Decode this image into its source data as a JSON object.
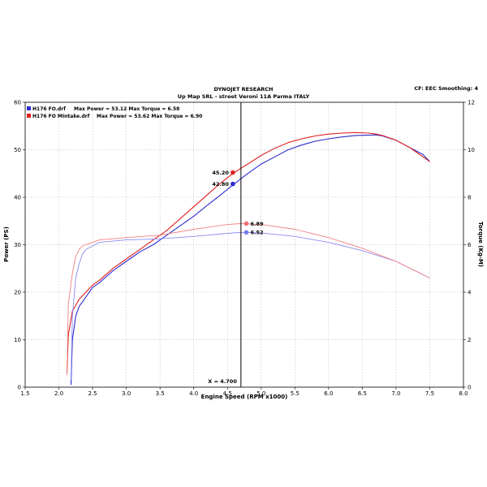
{
  "chart_data": {
    "type": "line",
    "header": {
      "title": "DYNOJET RESEARCH",
      "subtitle": "Up Map SRL - street Veroni 11A Parma ITALY",
      "info": "CF: EEC   Smoothing: 4"
    },
    "xlabel": "Engine Speed (RPM x1000)",
    "ylabel_left": "Power (PS)",
    "ylabel_right": "Torque (Kg-M)",
    "xlim": [
      1.5,
      8.0
    ],
    "ylim_left": [
      0,
      60
    ],
    "ylim_right": [
      0,
      12
    ],
    "x_ticks": [
      "1.5",
      "2.0",
      "2.5",
      "3.0",
      "3.5",
      "4.0",
      "4.5",
      "5.0",
      "5.5",
      "6.0",
      "6.5",
      "7.0",
      "7.5",
      "8.0"
    ],
    "y_ticks_left": [
      "0",
      "10",
      "20",
      "30",
      "40",
      "50",
      "60"
    ],
    "y_ticks_right": [
      "0",
      "2",
      "4",
      "6",
      "8",
      "10",
      "12"
    ],
    "grid": true,
    "legend": [
      {
        "run": "H176 FO.drf",
        "text": "Max Power = 53.12    Max Torque = 6.58",
        "color": "#2b2bd0"
      },
      {
        "run": "H176 FO MIntake.drf",
        "text": "Max Power = 53.62    Max Torque = 6.90",
        "color": "#e02020"
      }
    ],
    "cursor": {
      "x": 4.7,
      "label": "X = 4.700"
    },
    "markers": [
      {
        "label": "45.20",
        "x": 4.58,
        "y": 45.2,
        "axis": "left",
        "color": "#e02020"
      },
      {
        "label": "42.80",
        "x": 4.58,
        "y": 42.8,
        "axis": "left",
        "color": "#2b2bd0"
      },
      {
        "label": "6.89",
        "x": 4.78,
        "y": 6.89,
        "axis": "right",
        "color": "#f07070"
      },
      {
        "label": "6.52",
        "x": 4.78,
        "y": 6.52,
        "axis": "right",
        "color": "#7a7aee"
      }
    ],
    "series": [
      {
        "kind": "power",
        "axis": "left",
        "color": "#2b2bd0",
        "x": [
          2.18,
          2.2,
          2.25,
          2.3,
          2.4,
          2.5,
          2.6,
          2.8,
          3.0,
          3.2,
          3.4,
          3.6,
          3.8,
          4.0,
          4.2,
          4.4,
          4.6,
          4.7,
          4.8,
          5.0,
          5.2,
          5.4,
          5.6,
          5.8,
          6.0,
          6.2,
          6.4,
          6.6,
          6.7,
          6.8,
          7.0,
          7.2,
          7.4,
          7.5
        ],
        "y": [
          0.5,
          10,
          15,
          17,
          19,
          21,
          22,
          24.5,
          26.5,
          28.5,
          30,
          32,
          34,
          36,
          38.3,
          40.5,
          42.8,
          43.9,
          45,
          47,
          48.5,
          50,
          51,
          51.8,
          52.3,
          52.7,
          53,
          53.1,
          53.12,
          52.9,
          52,
          50.5,
          49,
          47.5
        ]
      },
      {
        "kind": "power",
        "axis": "left",
        "color": "#e02020",
        "x": [
          2.12,
          2.14,
          2.2,
          2.3,
          2.4,
          2.5,
          2.6,
          2.8,
          3.0,
          3.2,
          3.4,
          3.6,
          3.8,
          4.0,
          4.2,
          4.4,
          4.6,
          4.7,
          4.8,
          5.0,
          5.2,
          5.4,
          5.6,
          5.8,
          6.0,
          6.2,
          6.4,
          6.6,
          6.7,
          6.8,
          7.0,
          7.2,
          7.4,
          7.5
        ],
        "y": [
          3,
          11,
          16,
          18.5,
          20,
          21.5,
          22.5,
          25,
          27,
          29,
          31,
          33,
          35.5,
          38,
          40.5,
          43,
          45.2,
          46.1,
          47,
          48.8,
          50.3,
          51.5,
          52.3,
          52.9,
          53.3,
          53.5,
          53.62,
          53.5,
          53.3,
          53,
          52,
          50.5,
          48.5,
          47.5
        ]
      },
      {
        "kind": "torque",
        "axis": "right",
        "color": "#8a8af0",
        "x": [
          2.18,
          2.2,
          2.25,
          2.3,
          2.35,
          2.4,
          2.5,
          2.6,
          2.8,
          3.0,
          3.5,
          4.0,
          4.5,
          4.7,
          5.0,
          5.5,
          6.0,
          6.5,
          7.0,
          7.5
        ],
        "y": [
          0.3,
          3,
          4.6,
          5.2,
          5.6,
          5.8,
          5.95,
          6.1,
          6.15,
          6.2,
          6.25,
          6.35,
          6.48,
          6.52,
          6.5,
          6.35,
          6.1,
          5.75,
          5.3,
          4.6
        ]
      },
      {
        "kind": "torque",
        "axis": "right",
        "color": "#f08080",
        "x": [
          2.12,
          2.14,
          2.2,
          2.25,
          2.3,
          2.35,
          2.4,
          2.5,
          2.6,
          2.8,
          3.0,
          3.5,
          4.0,
          4.5,
          4.7,
          5.0,
          5.5,
          6.0,
          6.5,
          7.0,
          7.5
        ],
        "y": [
          0.5,
          3.5,
          4.8,
          5.5,
          5.8,
          5.95,
          6.0,
          6.1,
          6.2,
          6.25,
          6.3,
          6.4,
          6.65,
          6.85,
          6.89,
          6.85,
          6.65,
          6.3,
          5.85,
          5.3,
          4.6
        ]
      }
    ]
  }
}
